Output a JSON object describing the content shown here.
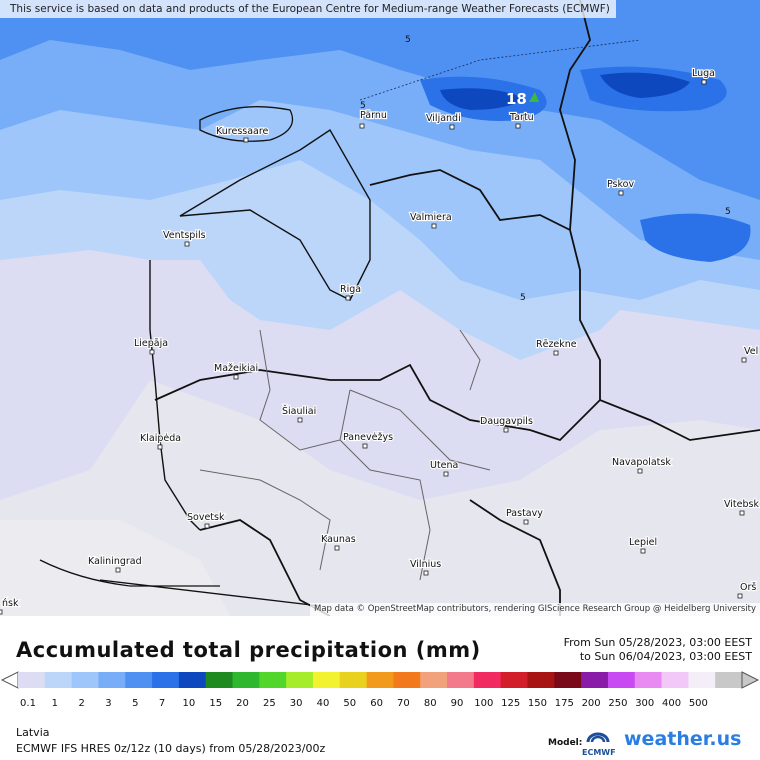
{
  "attribution_top": "This service is based on data and products of the European Centre for Medium-range Weather Forecasts (ECMWF)",
  "attribution_map": "Map data © OpenStreetMap contributors, rendering GIScience Research Group @ Heidelberg University",
  "title": "Accumulated total precipitation (mm)",
  "period": {
    "from": "From Sun 05/28/2023, 03:00 EEST",
    "to": "to Sun 06/04/2023, 03:00 EEST"
  },
  "region": "Latvia",
  "model_run": "ECMWF IFS HRES 0z/12z (10 days) from 05/28/2023/00z",
  "model_label": "Model:",
  "model_logo_text": "ECMWF",
  "brand": "weather.us",
  "max_value": "18",
  "contour_label": "5",
  "cities": [
    {
      "name": "Kuressaare"
    },
    {
      "name": "Pärnu"
    },
    {
      "name": "Viljandi"
    },
    {
      "name": "Tartu"
    },
    {
      "name": "Luga"
    },
    {
      "name": "Pskov"
    },
    {
      "name": "Valmiera"
    },
    {
      "name": "Ventspils"
    },
    {
      "name": "Riga"
    },
    {
      "name": "Liepāja"
    },
    {
      "name": "Rēzekne"
    },
    {
      "name": "Mažeikiai"
    },
    {
      "name": "Šiauliai"
    },
    {
      "name": "Klaipėda"
    },
    {
      "name": "Panevėžys"
    },
    {
      "name": "Daugavpils"
    },
    {
      "name": "Utena"
    },
    {
      "name": "Navapolatsk"
    },
    {
      "name": "Sovetsk"
    },
    {
      "name": "Kaunas"
    },
    {
      "name": "Pastavy"
    },
    {
      "name": "Kaliningrad"
    },
    {
      "name": "Vilnius"
    },
    {
      "name": "Lepiel"
    },
    {
      "name": "Vitebsk"
    },
    {
      "name": "Orš"
    },
    {
      "name": "Vel"
    },
    {
      "name": "ńsk"
    }
  ],
  "legend": {
    "labels": [
      "0.1",
      "1",
      "2",
      "3",
      "5",
      "7",
      "10",
      "15",
      "20",
      "25",
      "30",
      "40",
      "50",
      "60",
      "70",
      "80",
      "90",
      "100",
      "125",
      "150",
      "175",
      "200",
      "250",
      "300",
      "400",
      "500"
    ],
    "colors": [
      "#dcdcf2",
      "#bcd6fa",
      "#9ec6fa",
      "#78aef8",
      "#4f91f2",
      "#2b72e8",
      "#0d48bf",
      "#1f8a1f",
      "#2fb82f",
      "#52d62a",
      "#a6ec2a",
      "#f2f230",
      "#e8d21e",
      "#f29a1c",
      "#f27a1c",
      "#f2a27a",
      "#f27a8a",
      "#f22a62",
      "#d21e2a",
      "#a81414",
      "#7a0a1a",
      "#8a1aa8",
      "#c84af2",
      "#e88af2",
      "#f2c8f8",
      "#f4eef8",
      "#c8c8c8"
    ]
  }
}
